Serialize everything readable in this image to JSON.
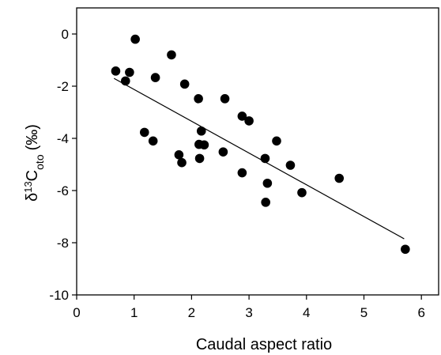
{
  "chart_data": {
    "type": "scatter",
    "xlabel": "Caudal aspect ratio",
    "ylabel": {
      "symbol": "δ",
      "superscript": "13",
      "base": "C",
      "subscript": "oto",
      "unit": "(‰)"
    },
    "xlim": [
      0,
      6.3
    ],
    "ylim": [
      -10,
      1
    ],
    "x_ticks": [
      0,
      1,
      2,
      3,
      4,
      5,
      6
    ],
    "y_ticks": [
      0,
      -2,
      -4,
      -6,
      -8,
      -10
    ],
    "grid": false,
    "legend": "none",
    "colors": {
      "marker": "#000000",
      "line": "#000000"
    },
    "series": [
      {
        "points": [
          [
            0.68,
            -1.42
          ],
          [
            0.85,
            -1.8
          ],
          [
            0.92,
            -1.47
          ],
          [
            1.02,
            -0.2
          ],
          [
            1.18,
            -3.77
          ],
          [
            1.33,
            -4.1
          ],
          [
            1.37,
            -1.67
          ],
          [
            1.65,
            -0.8
          ],
          [
            1.78,
            -4.63
          ],
          [
            1.83,
            -4.93
          ],
          [
            1.88,
            -1.92
          ],
          [
            2.12,
            -2.48
          ],
          [
            2.13,
            -4.23
          ],
          [
            2.14,
            -4.77
          ],
          [
            2.17,
            -3.72
          ],
          [
            2.22,
            -4.25
          ],
          [
            2.55,
            -4.52
          ],
          [
            2.58,
            -2.48
          ],
          [
            2.88,
            -3.15
          ],
          [
            2.88,
            -5.32
          ],
          [
            3.0,
            -3.33
          ],
          [
            3.28,
            -4.77
          ],
          [
            3.29,
            -6.45
          ],
          [
            3.32,
            -5.72
          ],
          [
            3.48,
            -4.1
          ],
          [
            3.72,
            -5.03
          ],
          [
            3.92,
            -6.08
          ],
          [
            4.57,
            -5.53
          ],
          [
            5.72,
            -8.25
          ]
        ]
      }
    ],
    "fit_line": {
      "x": [
        0.65,
        5.7
      ],
      "y": [
        -1.7,
        -7.85
      ]
    }
  }
}
